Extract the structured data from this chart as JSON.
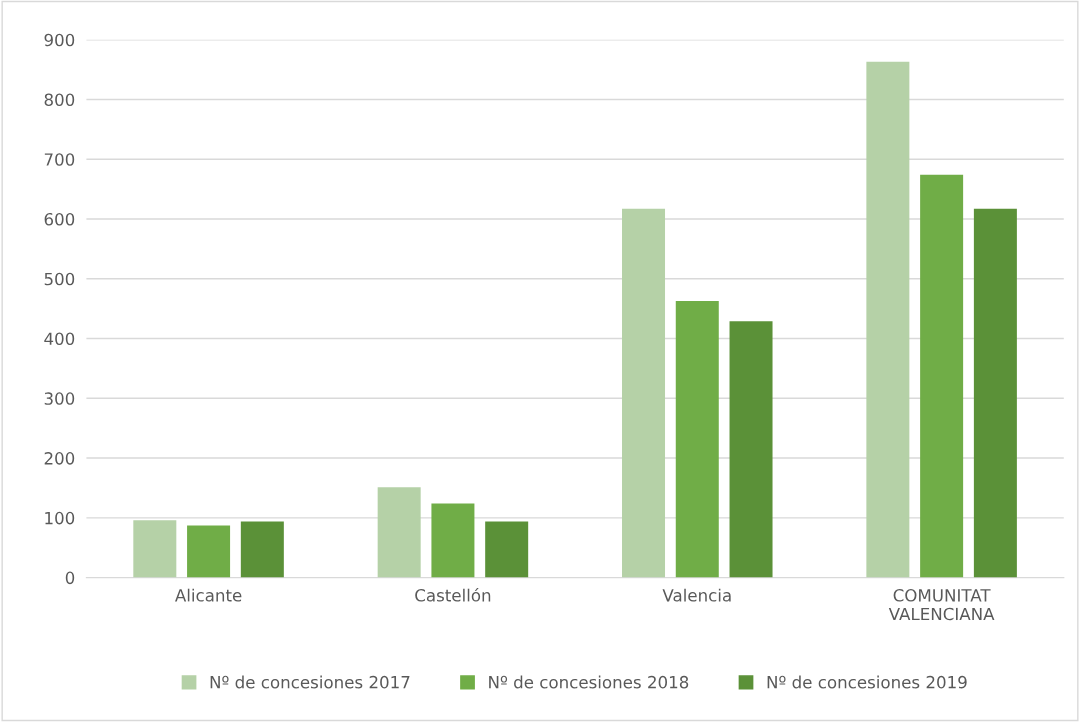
{
  "chart_data": {
    "type": "bar",
    "categories": [
      "Alicante",
      "Castellón",
      "Valencia",
      "COMUNITAT\nVALENCIANA"
    ],
    "series": [
      {
        "name": "Nº de concesiones 2017",
        "color": "#b5d1a7",
        "values": [
          96,
          151,
          617,
          863
        ]
      },
      {
        "name": "Nº de concesiones 2018",
        "color": "#70ad47",
        "values": [
          87,
          124,
          463,
          674
        ]
      },
      {
        "name": "Nº de concesiones 2019",
        "color": "#5b9138",
        "values": [
          94,
          94,
          429,
          617
        ]
      }
    ],
    "ylim": [
      0,
      900
    ],
    "yticks": [
      0,
      100,
      200,
      300,
      400,
      500,
      600,
      700,
      800,
      900
    ],
    "grid": "y",
    "legend": "bottom"
  }
}
